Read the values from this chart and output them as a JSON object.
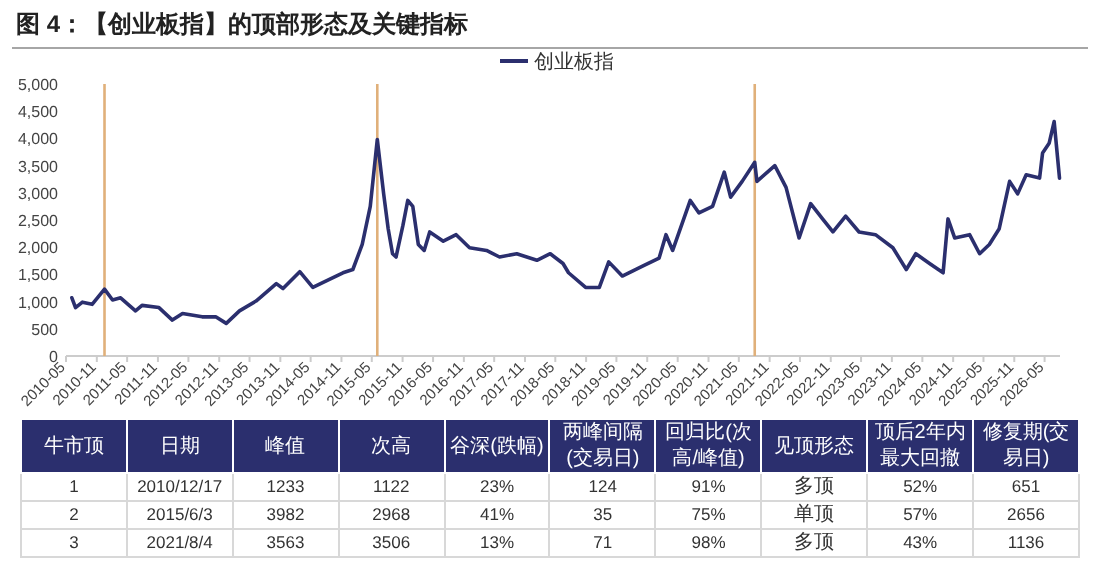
{
  "chart_data": [
    {
      "type": "line",
      "title": "图 4：【创业板指】的顶部形态及关键指标",
      "legend": "top",
      "xlim": [
        "2010-05-01",
        "2026-08-01"
      ],
      "ylim": [
        0,
        5000
      ],
      "xticks": [
        "2010-05",
        "2010-11",
        "2011-05",
        "2011-11",
        "2012-05",
        "2012-11",
        "2013-05",
        "2013-11",
        "2014-05",
        "2014-11",
        "2015-05",
        "2015-11",
        "2016-05",
        "2016-11",
        "2017-05",
        "2017-11",
        "2018-05",
        "2018-11",
        "2019-05",
        "2019-11",
        "2020-05",
        "2020-11",
        "2021-05",
        "2021-11",
        "2022-05",
        "2022-11",
        "2023-05",
        "2023-11",
        "2024-05",
        "2024-11",
        "2025-05",
        "2025-11",
        "2026-05"
      ],
      "yticks": [
        0,
        500,
        {
          "value": 1000,
          "label": "1,000"
        },
        {
          "value": 1500,
          "label": "1,500"
        },
        {
          "value": 2000,
          "label": "2,000"
        },
        {
          "value": 2500,
          "label": "2,500"
        },
        {
          "value": 3000,
          "label": "3,000"
        },
        {
          "value": 3500,
          "label": "3,500"
        },
        {
          "value": 4000,
          "label": "4,000"
        },
        {
          "value": 4500,
          "label": "4,500"
        },
        {
          "value": 5000,
          "label": "5,000"
        }
      ],
      "ref_lines": [
        {
          "axis": "x",
          "value": "2010-12-17",
          "color": "#e0b07a"
        },
        {
          "axis": "x",
          "value": "2015-06-03",
          "color": "#e0b07a"
        },
        {
          "axis": "x",
          "value": "2021-08-04",
          "color": "#e0b07a"
        }
      ],
      "series": [
        {
          "name": "创业板指",
          "color": "#2b2f6e",
          "x": [
            "2010-06-05",
            "2010-06-27",
            "2010-08-07",
            "2010-10-04",
            "2010-12-17",
            "2011-02-03",
            "2011-03-23",
            "2011-06-20",
            "2011-07-29",
            "2011-11-07",
            "2012-01-26",
            "2012-03-27",
            "2012-07-22",
            "2012-10-11",
            "2012-12-13",
            "2013-03-02",
            "2013-06-09",
            "2013-10-08",
            "2013-11-17",
            "2014-02-25",
            "2014-05-14",
            "2014-08-21",
            "2014-11-10",
            "2015-01-08",
            "2015-03-05",
            "2015-04-22",
            "2015-06-03",
            "2015-07-11",
            "2015-08-07",
            "2015-09-02",
            "2015-09-23",
            "2015-11-03",
            "2015-12-02",
            "2016-01-01",
            "2016-02-03",
            "2016-03-09",
            "2016-04-11",
            "2016-07-01",
            "2016-09-16",
            "2016-12-05",
            "2017-03-16",
            "2017-06-02",
            "2017-09-13",
            "2018-01-11",
            "2018-04-01",
            "2018-06-16",
            "2018-07-19",
            "2018-10-29",
            "2019-01-19",
            "2019-03-16",
            "2019-06-05",
            "2019-10-04",
            "2020-01-11",
            "2020-02-21",
            "2020-04-01",
            "2020-07-15",
            "2020-09-05",
            "2020-11-25",
            "2021-02-03",
            "2021-03-13",
            "2021-05-21",
            "2021-08-04",
            "2021-08-17",
            "2021-12-02",
            "2022-02-07",
            "2022-04-26",
            "2022-07-04",
            "2022-09-13",
            "2022-11-14",
            "2023-01-29",
            "2023-04-19",
            "2023-07-26",
            "2023-11-07",
            "2024-01-26",
            "2024-03-23",
            "2024-06-13",
            "2024-09-02",
            "2024-10-01",
            "2024-11-10",
            "2025-02-07",
            "2025-04-08",
            "2025-06-05",
            "2025-08-03",
            "2025-10-04",
            "2025-11-21",
            "2026-01-11",
            "2026-04-01",
            "2026-04-19",
            "2026-05-28",
            "2026-06-27",
            "2026-07-29"
          ],
          "values": [
            1070,
            890,
            990,
            950,
            1230,
            1030,
            1070,
            830,
            930,
            890,
            660,
            780,
            720,
            720,
            600,
            830,
            1010,
            1330,
            1240,
            1550,
            1260,
            1410,
            1530,
            1590,
            2050,
            2750,
            3980,
            2980,
            2340,
            1880,
            1820,
            2400,
            2860,
            2750,
            2050,
            1940,
            2280,
            2110,
            2230,
            1990,
            1940,
            1820,
            1880,
            1760,
            1880,
            1700,
            1530,
            1260,
            1260,
            1730,
            1470,
            1650,
            1800,
            2230,
            1940,
            2860,
            2630,
            2750,
            3380,
            2920,
            3210,
            3560,
            3210,
            3500,
            3100,
            2170,
            2800,
            2520,
            2280,
            2570,
            2280,
            2230,
            1990,
            1590,
            1880,
            1700,
            1530,
            2520,
            2170,
            2230,
            1880,
            2050,
            2340,
            3210,
            2980,
            3330,
            3270,
            3730,
            3910,
            4310,
            3270
          ]
        }
      ]
    },
    {
      "type": "other",
      "categories": [
        "牛市顶",
        "日期",
        "峰值",
        "次高",
        "谷深(跌幅)",
        "两峰间隔(交易日)",
        "回归比(次高/峰值)",
        "见顶形态",
        "顶后2年内最大回撤",
        "修复期(交易日)"
      ],
      "cell_labels": [
        [
          "1",
          "2010/12/17",
          "1233",
          "1122",
          "23%",
          "124",
          "91%",
          "多顶",
          "52%",
          "651"
        ],
        [
          "2",
          "2015/6/3",
          "3982",
          "2968",
          "41%",
          "35",
          "75%",
          "单顶",
          "57%",
          "2656"
        ],
        [
          "3",
          "2021/8/4",
          "3563",
          "3506",
          "13%",
          "71",
          "98%",
          "多顶",
          "43%",
          "1136"
        ]
      ]
    }
  ]
}
